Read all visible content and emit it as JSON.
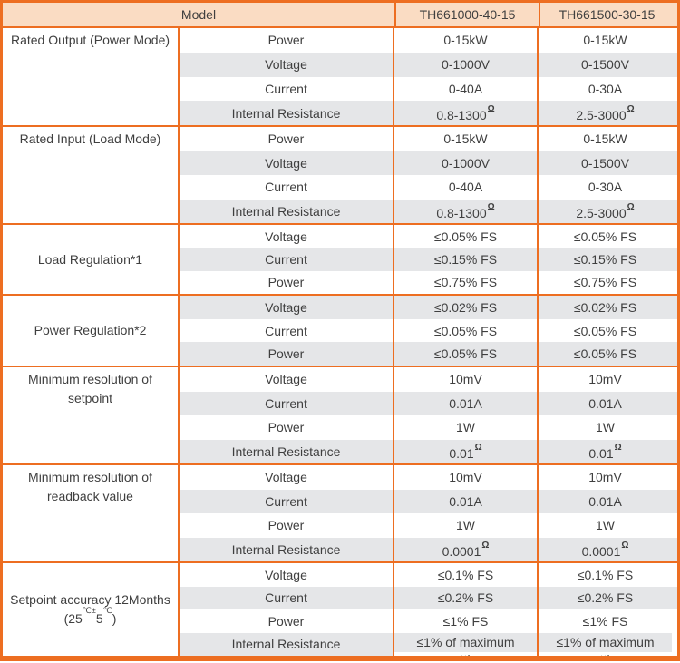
{
  "header": {
    "model_label": "Model",
    "columns": [
      "TH661000-40-15",
      "TH661500-30-15"
    ]
  },
  "groups": [
    {
      "label": "Rated Output (Power Mode)",
      "rows": [
        {
          "param": "Power",
          "v1": "0-15kW",
          "v2": "0-15kW"
        },
        {
          "param": "Voltage",
          "v1": "0-1000V",
          "v2": "0-1500V"
        },
        {
          "param": "Current",
          "v1": "0-40A",
          "v2": "0-30A"
        },
        {
          "param": "Internal Resistance",
          "v1": "0.8-1300",
          "v1sup": "Ω",
          "v2": "2.5-3000",
          "v2sup": "Ω"
        }
      ]
    },
    {
      "label": "Rated Input (Load Mode)",
      "rows": [
        {
          "param": "Power",
          "v1": "0-15kW",
          "v2": "0-15kW"
        },
        {
          "param": "Voltage",
          "v1": "0-1000V",
          "v2": "0-1500V"
        },
        {
          "param": "Current",
          "v1": "0-40A",
          "v2": "0-30A"
        },
        {
          "param": "Internal Resistance",
          "v1": "0.8-1300",
          "v1sup": "Ω",
          "v2": "2.5-3000",
          "v2sup": "Ω"
        }
      ]
    },
    {
      "label": "Load Regulation*1",
      "rows": [
        {
          "param": "Voltage",
          "v1": "≤0.05% FS",
          "v2": "≤0.05% FS"
        },
        {
          "param": "Current",
          "v1": "≤0.15% FS",
          "v2": "≤0.15% FS"
        },
        {
          "param": "Power",
          "v1": "≤0.75% FS",
          "v2": "≤0.75% FS"
        }
      ]
    },
    {
      "label": "Power Regulation*2",
      "rows": [
        {
          "param": "Voltage",
          "v1": "≤0.02% FS",
          "v2": "≤0.02% FS"
        },
        {
          "param": "Current",
          "v1": "≤0.05% FS",
          "v2": "≤0.05% FS"
        },
        {
          "param": "Power",
          "v1": "≤0.05% FS",
          "v2": "≤0.05% FS"
        }
      ]
    },
    {
      "label": "Minimum resolution of setpoint",
      "rows": [
        {
          "param": "Voltage",
          "v1": "10mV",
          "v2": "10mV"
        },
        {
          "param": "Current",
          "v1": "0.01A",
          "v2": "0.01A"
        },
        {
          "param": "Power",
          "v1": "1W",
          "v2": "1W"
        },
        {
          "param": "Internal Resistance",
          "v1": "0.01",
          "v1sup": "Ω",
          "v2": "0.01",
          "v2sup": "Ω"
        }
      ]
    },
    {
      "label": "Minimum resolution of readback value",
      "rows": [
        {
          "param": "Voltage",
          "v1": "10mV",
          "v2": "10mV"
        },
        {
          "param": "Current",
          "v1": "0.01A",
          "v2": "0.01A"
        },
        {
          "param": "Power",
          "v1": "1W",
          "v2": "1W"
        },
        {
          "param": "Internal Resistance",
          "v1": "0.0001",
          "v1sup": "Ω",
          "v2": "0.0001",
          "v2sup": "Ω"
        }
      ]
    },
    {
      "label": "Setpoint accuracy 12Months",
      "label2": {
        "a": "(25",
        "b": "℃±",
        "c": "5",
        "d": "℃",
        "e": ")"
      },
      "rows": [
        {
          "param": "Voltage",
          "v1": "≤0.1% FS",
          "v2": "≤0.1% FS"
        },
        {
          "param": "Current",
          "v1": "≤0.2% FS",
          "v2": "≤0.2% FS"
        },
        {
          "param": "Power",
          "v1": "≤1% FS",
          "v2": "≤1% FS"
        },
        {
          "param": "Internal Resistance",
          "v1": "≤1% of maximum",
          "v1_line2": "setting",
          "v2": "≤1% of maximum",
          "v2_line2": "setting"
        }
      ]
    }
  ],
  "colors": {
    "border_orange": "#ED6E21",
    "header_bg": "#FADCC3",
    "stripe_gray": "#E5E6E8",
    "text": "#3F3F3F"
  }
}
